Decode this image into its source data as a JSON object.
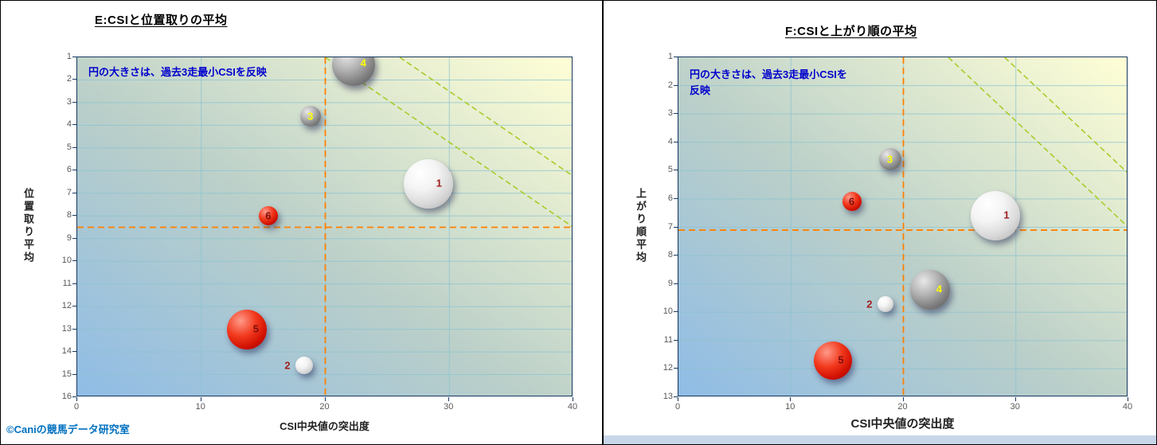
{
  "page": {
    "credit": "©Caniの競馬データ研究室"
  },
  "colors": {
    "grid": "#8CC3CF",
    "crosshair": "#FF8000",
    "diagonal_guide": "#A8CC2A",
    "annotation_text": "#0000CC",
    "credit_text": "#0070C0",
    "plot_border": "#17375E",
    "bubble_white": "#E9E9E9",
    "bubble_gray": "#7F7F7F",
    "bubble_red": "#D81414"
  },
  "chart_data": [
    {
      "type": "bubble",
      "title": "E:CSIと位置取りの平均",
      "annotation": "円の大きさは、過去3走最小CSIを反映",
      "xlabel": "CSI中央値の突出度",
      "ylabel": "位置取り平均",
      "xlim": [
        0,
        40
      ],
      "ylim": [
        1,
        16
      ],
      "y_inverted": true,
      "grid": true,
      "legend": "none",
      "x_ticks": [
        0,
        10,
        20,
        30,
        40
      ],
      "y_ticks": [
        1,
        2,
        3,
        4,
        5,
        6,
        7,
        8,
        9,
        10,
        11,
        12,
        13,
        14,
        15,
        16
      ],
      "crosshair": {
        "x": 20,
        "y": 8.5
      },
      "diagonal_lines": [
        {
          "x1": 20,
          "y1": 1,
          "x2": 40,
          "y2": 8.5
        },
        {
          "x1": 26,
          "y1": 1,
          "x2": 40,
          "y2": 6.25
        }
      ],
      "points": [
        {
          "label": "1",
          "x": 28.3,
          "y": 6.6,
          "r": 31,
          "color": "white",
          "label_side": "right",
          "label_color": "#A02020"
        },
        {
          "label": "2",
          "x": 18.3,
          "y": 14.6,
          "r": 11,
          "color": "white",
          "label_side": "left",
          "label_color": "#A02020"
        },
        {
          "label": "3",
          "x": 18.8,
          "y": 3.6,
          "r": 13,
          "color": "gray",
          "label_side": "center",
          "label_color": "#FFFF00"
        },
        {
          "label": "4",
          "x": 22.3,
          "y": 1.3,
          "r": 27,
          "color": "gray",
          "label_side": "right",
          "label_color": "#FFFF00"
        },
        {
          "label": "5",
          "x": 13.7,
          "y": 13.0,
          "r": 25,
          "color": "red",
          "label_side": "right",
          "label_color": "#7B1010"
        },
        {
          "label": "6",
          "x": 15.4,
          "y": 8.0,
          "r": 12,
          "color": "red",
          "label_side": "center",
          "label_color": "#7B1010"
        }
      ]
    },
    {
      "type": "bubble",
      "title": "F:CSIと上がり順の平均",
      "annotation": "円の大きさは、過去3走最小CSIを反映",
      "xlabel": "CSI中央値の突出度",
      "ylabel": "上がり順平均",
      "xlim": [
        0,
        40
      ],
      "ylim": [
        1,
        13
      ],
      "y_inverted": true,
      "grid": true,
      "legend": "none",
      "x_ticks": [
        0,
        10,
        20,
        30,
        40
      ],
      "y_ticks": [
        1,
        2,
        3,
        4,
        5,
        6,
        7,
        8,
        9,
        10,
        11,
        12,
        13
      ],
      "crosshair": {
        "x": 20,
        "y": 7.1
      },
      "diagonal_lines": [
        {
          "x1": 24,
          "y1": 1,
          "x2": 40,
          "y2": 7
        },
        {
          "x1": 29,
          "y1": 1,
          "x2": 40,
          "y2": 5.1
        }
      ],
      "points": [
        {
          "label": "1",
          "x": 28.2,
          "y": 6.6,
          "r": 31,
          "color": "white",
          "label_side": "right",
          "label_color": "#A02020"
        },
        {
          "label": "2",
          "x": 18.4,
          "y": 9.7,
          "r": 10,
          "color": "white",
          "label_side": "left",
          "label_color": "#A02020"
        },
        {
          "label": "3",
          "x": 18.8,
          "y": 4.6,
          "r": 14,
          "color": "gray",
          "label_side": "center",
          "label_color": "#FFFF00"
        },
        {
          "label": "4",
          "x": 22.4,
          "y": 9.2,
          "r": 25,
          "color": "gray",
          "label_side": "right",
          "label_color": "#FFFF00"
        },
        {
          "label": "5",
          "x": 13.7,
          "y": 11.7,
          "r": 24,
          "color": "red",
          "label_side": "right",
          "label_color": "#7B1010"
        },
        {
          "label": "6",
          "x": 15.4,
          "y": 6.1,
          "r": 12,
          "color": "red",
          "label_side": "center",
          "label_color": "#7B1010"
        }
      ]
    }
  ]
}
